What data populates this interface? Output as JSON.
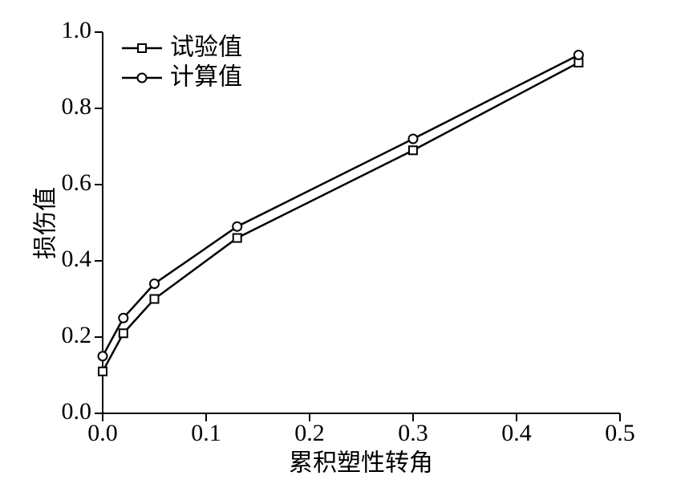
{
  "chart_data": {
    "type": "line",
    "x_label": "累积塑性转角",
    "y_label": "损伤值",
    "x": [
      0,
      0.02,
      0.05,
      0.13,
      0.3,
      0.46
    ],
    "series": [
      {
        "name": "试验值",
        "color": "#000000",
        "marker": "square",
        "values": [
          0.11,
          0.21,
          0.3,
          0.46,
          0.69,
          0.92
        ]
      },
      {
        "name": "计算值",
        "color": "#000000",
        "marker": "circle",
        "values": [
          0.15,
          0.25,
          0.34,
          0.49,
          0.72,
          0.94
        ]
      }
    ],
    "xlim": [
      0,
      0.5
    ],
    "xticks": [
      {
        "value": 0,
        "label": "0.0"
      },
      0.1,
      0.2,
      0.3,
      0.4,
      0.5
    ],
    "ylim": [
      0,
      1
    ],
    "yticks": [
      {
        "value": 0,
        "label": "0.0"
      },
      0.2,
      0.4,
      0.6,
      0.8,
      {
        "value": 1,
        "label": "1.0"
      }
    ],
    "legend": "upper left"
  }
}
